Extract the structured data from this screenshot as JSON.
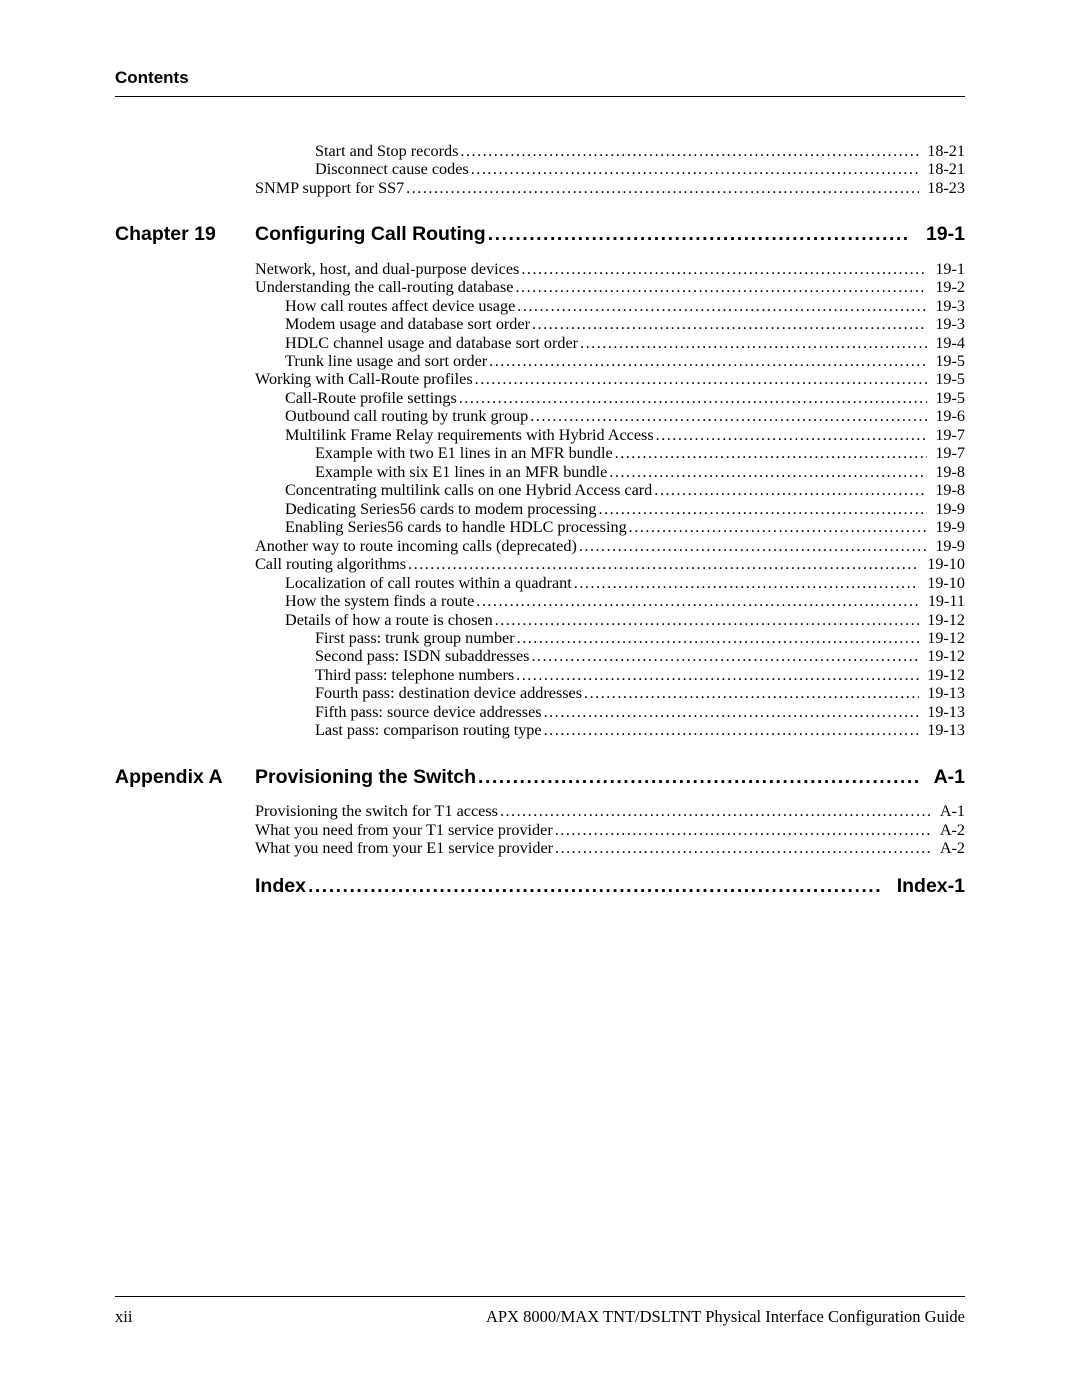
{
  "colors": {
    "text": "#000000",
    "background": "#ffffff",
    "rule": "#000000"
  },
  "typography": {
    "body_font": "Times New Roman",
    "heading_font": "Arial",
    "body_size_pt": 12,
    "heading_size_pt": 14.5,
    "header_title_size_pt": 13
  },
  "header": {
    "title": "Contents"
  },
  "preface_entries": [
    {
      "indent": 3,
      "text": "Start and Stop records",
      "page": "18-21"
    },
    {
      "indent": 3,
      "text": "Disconnect cause codes",
      "page": "18-21"
    },
    {
      "indent": 1,
      "text": "SNMP support for SS7",
      "page": "18-23"
    }
  ],
  "sections": [
    {
      "label": "Chapter 19",
      "title": "Configuring Call Routing",
      "page": "19-1",
      "entries": [
        {
          "indent": 1,
          "text": "Network, host, and dual-purpose devices",
          "page": "19-1"
        },
        {
          "indent": 1,
          "text": "Understanding the call-routing database",
          "page": "19-2"
        },
        {
          "indent": 2,
          "text": "How call routes affect device usage",
          "page": "19-3"
        },
        {
          "indent": 2,
          "text": "Modem usage and database sort order",
          "page": "19-3"
        },
        {
          "indent": 2,
          "text": "HDLC channel usage and database sort order",
          "page": "19-4"
        },
        {
          "indent": 2,
          "text": "Trunk line usage and sort order",
          "page": "19-5"
        },
        {
          "indent": 1,
          "text": "Working with Call-Route profiles",
          "page": "19-5"
        },
        {
          "indent": 2,
          "text": "Call-Route profile settings",
          "page": "19-5"
        },
        {
          "indent": 2,
          "text": "Outbound call routing by trunk group",
          "page": "19-6"
        },
        {
          "indent": 2,
          "text": "Multilink Frame Relay requirements with Hybrid Access",
          "page": "19-7"
        },
        {
          "indent": 3,
          "text": "Example with two E1 lines in an MFR bundle",
          "page": "19-7"
        },
        {
          "indent": 3,
          "text": "Example with six E1 lines in an MFR bundle",
          "page": "19-8"
        },
        {
          "indent": 2,
          "text": "Concentrating multilink calls on one Hybrid Access card",
          "page": "19-8"
        },
        {
          "indent": 2,
          "text": "Dedicating Series56 cards to modem processing",
          "page": "19-9"
        },
        {
          "indent": 2,
          "text": "Enabling Series56 cards to handle HDLC processing",
          "page": "19-9"
        },
        {
          "indent": 1,
          "text": "Another way to route incoming calls (deprecated)",
          "page": "19-9"
        },
        {
          "indent": 1,
          "text": "Call routing algorithms",
          "page": "19-10"
        },
        {
          "indent": 2,
          "text": "Localization of call routes within a quadrant",
          "page": "19-10"
        },
        {
          "indent": 2,
          "text": "How the system finds a route",
          "page": "19-11"
        },
        {
          "indent": 2,
          "text": "Details of how a route is chosen",
          "page": "19-12"
        },
        {
          "indent": 3,
          "text": "First pass: trunk group number",
          "page": "19-12"
        },
        {
          "indent": 3,
          "text": "Second pass: ISDN subaddresses",
          "page": "19-12"
        },
        {
          "indent": 3,
          "text": "Third pass: telephone numbers",
          "page": "19-12"
        },
        {
          "indent": 3,
          "text": "Fourth pass: destination device addresses",
          "page": "19-13"
        },
        {
          "indent": 3,
          "text": "Fifth pass: source device addresses",
          "page": "19-13"
        },
        {
          "indent": 3,
          "text": "Last pass: comparison routing type",
          "page": "19-13"
        }
      ]
    },
    {
      "label": "Appendix A",
      "title": "Provisioning the Switch",
      "page": "A-1",
      "entries": [
        {
          "indent": 1,
          "text": "Provisioning the switch for T1 access",
          "page": "A-1"
        },
        {
          "indent": 1,
          "text": "What you need from your T1 service provider",
          "page": "A-2"
        },
        {
          "indent": 1,
          "text": "What you need from your E1 service provider",
          "page": "A-2"
        }
      ]
    }
  ],
  "index": {
    "title": "Index",
    "page": "Index-1"
  },
  "footer": {
    "page_number": "xii",
    "doc_title": "APX 8000/MAX TNT/DSLTNT Physical Interface Configuration Guide"
  },
  "leaders_char": "."
}
